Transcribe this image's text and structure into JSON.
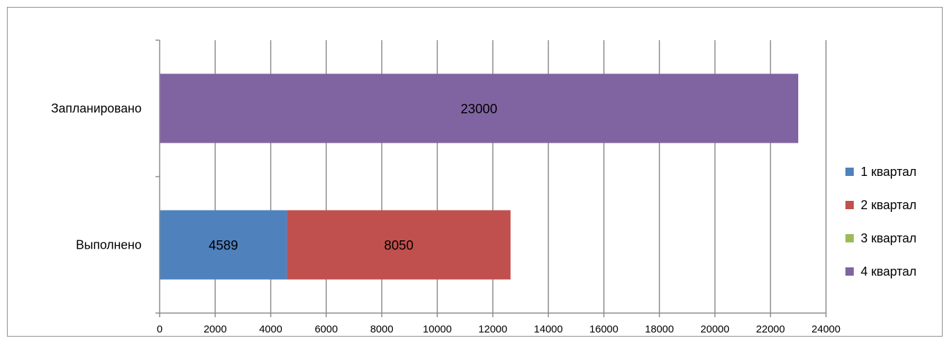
{
  "chart_data": {
    "type": "bar",
    "orientation": "horizontal",
    "stacked": true,
    "categories": [
      "Выполнено",
      "Запланировано"
    ],
    "series": [
      {
        "name": "1 квартал",
        "color": "#4f81bd",
        "values": [
          4589,
          0
        ],
        "labels": [
          "4589",
          ""
        ]
      },
      {
        "name": "2 квартал",
        "color": "#c0504d",
        "values": [
          8050,
          0
        ],
        "labels": [
          "8050",
          ""
        ]
      },
      {
        "name": "3 квартал",
        "color": "#9bbb59",
        "values": [
          0,
          0
        ],
        "labels": [
          "",
          ""
        ]
      },
      {
        "name": "4 квартал",
        "color": "#8064a2",
        "values": [
          0,
          23000
        ],
        "labels": [
          "",
          "23000"
        ]
      }
    ],
    "xlim": [
      0,
      24000
    ],
    "xticks": [
      "0",
      "2000",
      "4000",
      "6000",
      "8000",
      "10000",
      "12000",
      "14000",
      "16000",
      "18000",
      "20000",
      "22000",
      "24000"
    ],
    "grid": true,
    "legend_position": "right"
  }
}
